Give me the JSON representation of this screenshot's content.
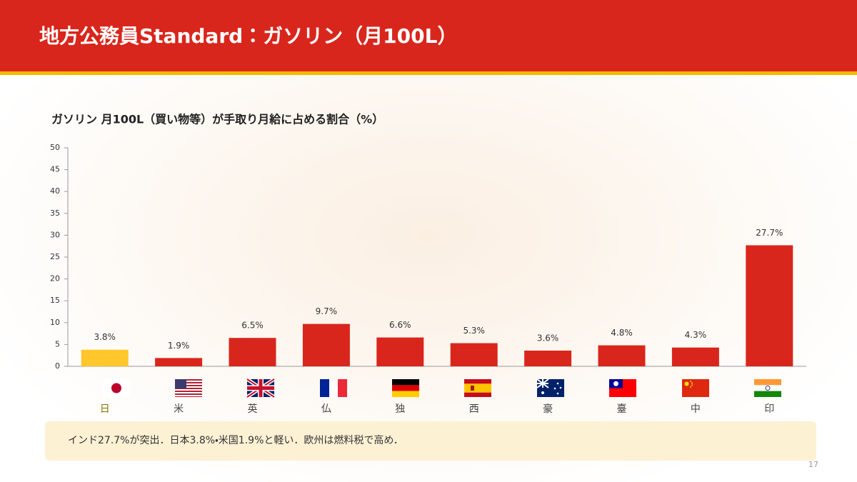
{
  "header": {
    "title": "地方公務員Standard：ガソリン（月100L）"
  },
  "chart_data": {
    "type": "bar",
    "title": "ガソリン 月100L（買い物等）が手取り月給に占める割合（%）",
    "categories": [
      "日",
      "米",
      "英",
      "仏",
      "独",
      "西",
      "豪",
      "臺",
      "中",
      "印"
    ],
    "values": [
      3.8,
      1.9,
      6.5,
      9.7,
      6.6,
      5.3,
      3.6,
      4.8,
      4.3,
      27.7
    ],
    "value_labels": [
      "3.8%",
      "1.9%",
      "6.5%",
      "9.7%",
      "6.6%",
      "5.3%",
      "3.6%",
      "4.8%",
      "4.3%",
      "27.7%"
    ],
    "colors": [
      "#ffc72c",
      "#d9261c",
      "#d9261c",
      "#d9261c",
      "#d9261c",
      "#d9261c",
      "#d9261c",
      "#d9261c",
      "#d9261c",
      "#d9261c"
    ],
    "ylim": [
      0,
      50
    ],
    "yticks": [
      0,
      5,
      10,
      15,
      20,
      25,
      30,
      35,
      40,
      45,
      50
    ],
    "grid": false
  },
  "note": "インド27.7%が突出．日本3.8%・米国1.9%と軽い．欧州は燃料税で高め．",
  "page_number": 17
}
